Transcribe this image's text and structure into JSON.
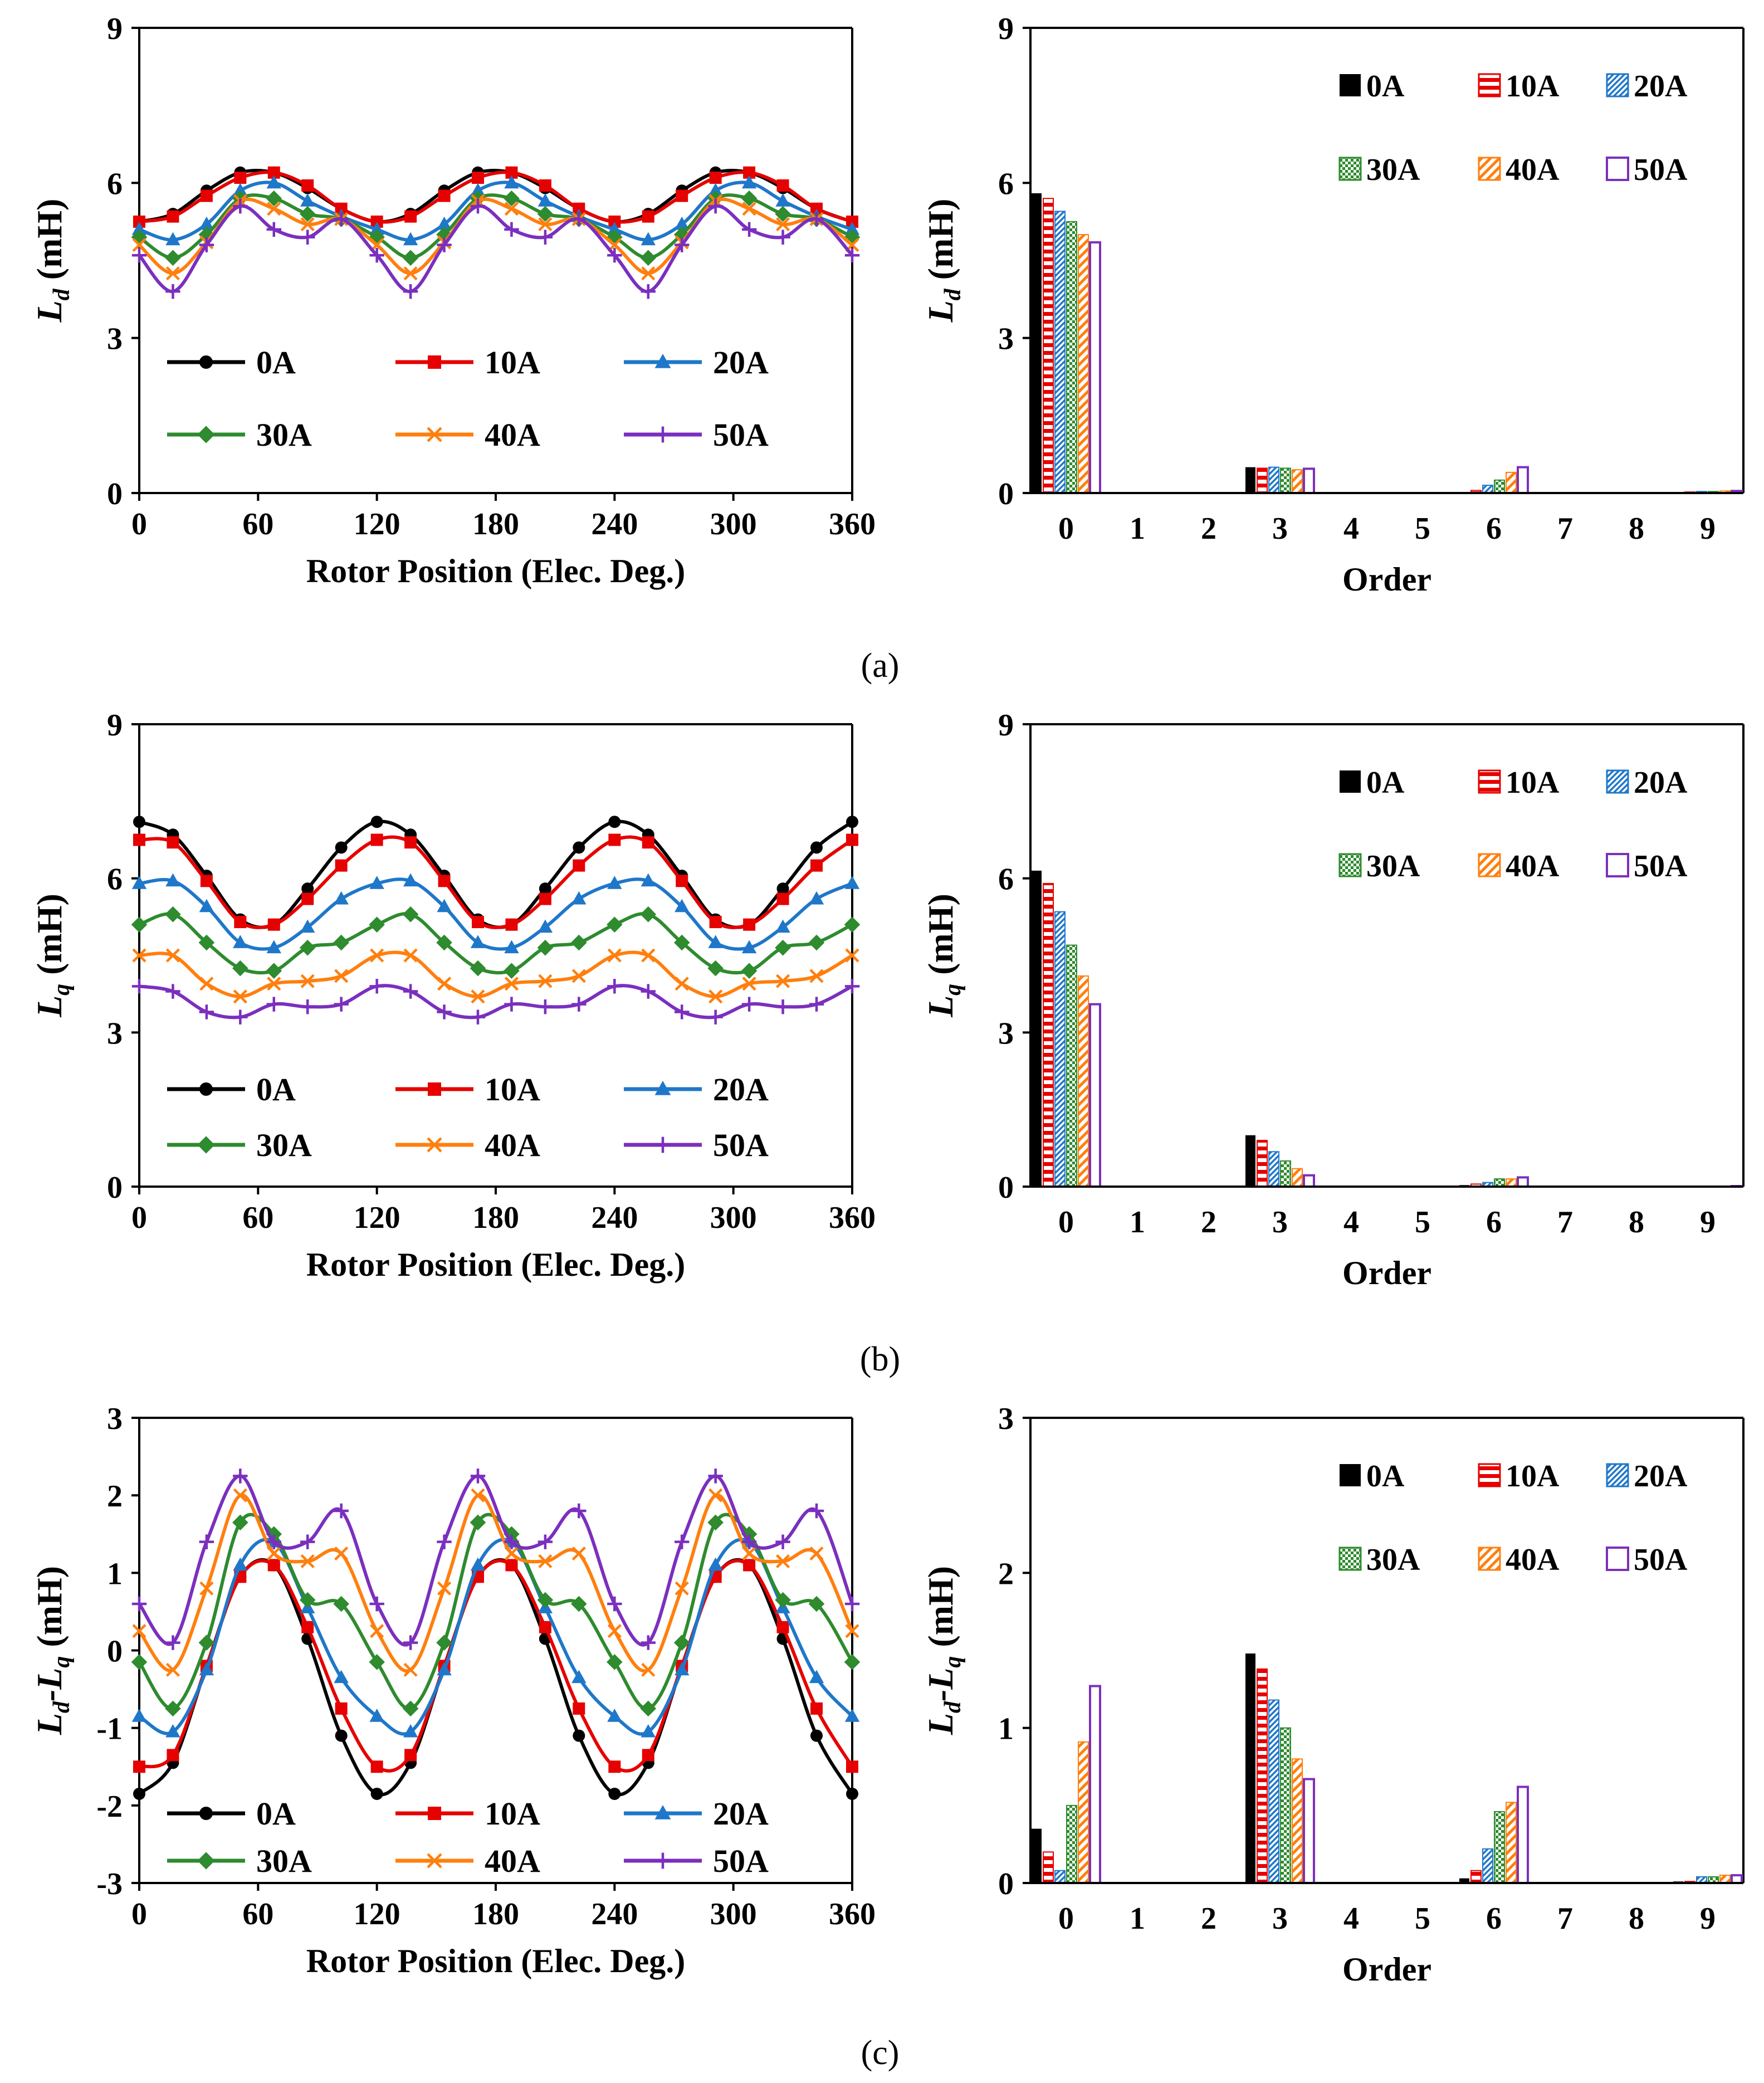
{
  "figure": {
    "panel_labels": [
      "(a)",
      "(b)",
      "(c)"
    ]
  },
  "colors": {
    "0A": "#000000",
    "10A": "#e60000",
    "20A": "#1f77c9",
    "30A": "#2e8b2e",
    "40A": "#ff7f0e",
    "50A": "#7b2fbe"
  },
  "chart_data": [
    {
      "type": "line",
      "panel": "(a)",
      "ylabel_main": "L",
      "ylabel_sub": "d",
      "ylabel_unit": " (mH)",
      "xlabel": "Rotor Position (Elec. Deg.)",
      "xlim": [
        0,
        360
      ],
      "ylim": [
        0,
        9
      ],
      "xticks": [
        0,
        60,
        120,
        180,
        240,
        300,
        360
      ],
      "yticks": [
        0,
        3,
        6,
        9
      ],
      "legend_layout": "three-columns-bottom-left",
      "x": [
        0,
        17,
        34,
        51,
        68,
        85,
        102,
        120,
        137,
        154,
        171,
        188,
        205,
        222,
        240,
        257,
        274,
        291,
        308,
        325,
        342,
        360
      ],
      "series": [
        {
          "name": "0A",
          "marker": "circle",
          "values": [
            5.25,
            5.4,
            5.85,
            6.2,
            6.2,
            5.9,
            5.5,
            5.25,
            5.4,
            5.85,
            6.2,
            6.2,
            5.9,
            5.5,
            5.25,
            5.4,
            5.85,
            6.2,
            6.2,
            5.9,
            5.5,
            5.25
          ]
        },
        {
          "name": "10A",
          "marker": "square",
          "values": [
            5.25,
            5.35,
            5.75,
            6.1,
            6.2,
            5.95,
            5.5,
            5.25,
            5.35,
            5.75,
            6.1,
            6.2,
            5.95,
            5.5,
            5.25,
            5.35,
            5.75,
            6.1,
            6.2,
            5.95,
            5.5,
            5.25
          ]
        },
        {
          "name": "20A",
          "marker": "triangle",
          "values": [
            5.1,
            4.9,
            5.2,
            5.85,
            6.0,
            5.65,
            5.35,
            5.1,
            4.9,
            5.2,
            5.85,
            6.0,
            5.65,
            5.35,
            5.1,
            4.9,
            5.2,
            5.85,
            6.0,
            5.65,
            5.35,
            5.1
          ]
        },
        {
          "name": "30A",
          "marker": "diamond",
          "values": [
            4.95,
            4.55,
            5.0,
            5.7,
            5.7,
            5.4,
            5.3,
            4.95,
            4.55,
            5.0,
            5.7,
            5.7,
            5.4,
            5.3,
            4.95,
            4.55,
            5.0,
            5.7,
            5.7,
            5.4,
            5.3,
            4.95
          ]
        },
        {
          "name": "40A",
          "marker": "x",
          "values": [
            4.8,
            4.25,
            4.85,
            5.65,
            5.5,
            5.2,
            5.3,
            4.8,
            4.25,
            4.85,
            5.65,
            5.5,
            5.2,
            5.3,
            4.8,
            4.25,
            4.85,
            5.65,
            5.5,
            5.2,
            5.3,
            4.8
          ]
        },
        {
          "name": "50A",
          "marker": "plus",
          "values": [
            4.6,
            3.9,
            4.8,
            5.55,
            5.1,
            4.95,
            5.3,
            4.6,
            3.9,
            4.8,
            5.55,
            5.1,
            4.95,
            5.3,
            4.6,
            3.9,
            4.8,
            5.55,
            5.1,
            4.95,
            5.3,
            4.6
          ]
        }
      ]
    },
    {
      "type": "bar",
      "panel": "(a)",
      "ylabel_main": "L",
      "ylabel_sub": "d",
      "ylabel_unit": " (mH)",
      "xlabel": "Order",
      "ylim": [
        0,
        9
      ],
      "yticks": [
        0,
        3,
        6,
        9
      ],
      "categories": [
        "0",
        "1",
        "2",
        "3",
        "4",
        "5",
        "6",
        "7",
        "8",
        "9"
      ],
      "legend_layout": "two-rows-top-right",
      "series": [
        {
          "name": "0A",
          "pattern": "solid",
          "values": [
            5.8,
            0,
            0,
            0.5,
            0,
            0,
            0.02,
            0,
            0,
            0.02
          ]
        },
        {
          "name": "10A",
          "pattern": "hbar",
          "values": [
            5.7,
            0,
            0,
            0.48,
            0,
            0,
            0.05,
            0,
            0,
            0.02
          ]
        },
        {
          "name": "20A",
          "pattern": "diag",
          "values": [
            5.45,
            0,
            0,
            0.5,
            0,
            0,
            0.15,
            0,
            0,
            0.03
          ]
        },
        {
          "name": "30A",
          "pattern": "check",
          "values": [
            5.25,
            0,
            0,
            0.48,
            0,
            0,
            0.25,
            0,
            0,
            0.03
          ]
        },
        {
          "name": "40A",
          "pattern": "wdiag",
          "values": [
            5.0,
            0,
            0,
            0.45,
            0,
            0,
            0.4,
            0,
            0,
            0.04
          ]
        },
        {
          "name": "50A",
          "pattern": "hollow",
          "values": [
            4.85,
            0,
            0,
            0.47,
            0,
            0,
            0.5,
            0,
            0,
            0.04
          ]
        }
      ]
    },
    {
      "type": "line",
      "panel": "(b)",
      "ylabel_main": "L",
      "ylabel_sub": "q",
      "ylabel_unit": " (mH)",
      "xlabel": "Rotor Position (Elec. Deg.)",
      "xlim": [
        0,
        360
      ],
      "ylim": [
        0,
        9
      ],
      "xticks": [
        0,
        60,
        120,
        180,
        240,
        300,
        360
      ],
      "yticks": [
        0,
        3,
        6,
        9
      ],
      "legend_layout": "three-columns-bottom-left",
      "x": [
        0,
        17,
        34,
        51,
        68,
        85,
        102,
        120,
        137,
        154,
        171,
        188,
        205,
        222,
        240,
        257,
        274,
        291,
        308,
        325,
        342,
        360
      ],
      "series": [
        {
          "name": "0A",
          "marker": "circle",
          "values": [
            7.1,
            6.85,
            6.05,
            5.2,
            5.1,
            5.8,
            6.6,
            7.1,
            6.85,
            6.05,
            5.2,
            5.1,
            5.8,
            6.6,
            7.1,
            6.85,
            6.05,
            5.2,
            5.1,
            5.8,
            6.6,
            7.1
          ]
        },
        {
          "name": "10A",
          "marker": "square",
          "values": [
            6.75,
            6.7,
            5.95,
            5.15,
            5.1,
            5.6,
            6.25,
            6.75,
            6.7,
            5.95,
            5.15,
            5.1,
            5.6,
            6.25,
            6.75,
            6.7,
            5.95,
            5.15,
            5.1,
            5.6,
            6.25,
            6.75
          ]
        },
        {
          "name": "20A",
          "marker": "triangle",
          "values": [
            5.9,
            5.95,
            5.45,
            4.75,
            4.65,
            5.05,
            5.6,
            5.9,
            5.95,
            5.45,
            4.75,
            4.65,
            5.05,
            5.6,
            5.9,
            5.95,
            5.45,
            4.75,
            4.65,
            5.05,
            5.6,
            5.9
          ]
        },
        {
          "name": "30A",
          "marker": "diamond",
          "values": [
            5.1,
            5.3,
            4.75,
            4.25,
            4.2,
            4.65,
            4.75,
            5.1,
            5.3,
            4.75,
            4.25,
            4.2,
            4.65,
            4.75,
            5.1,
            5.3,
            4.75,
            4.25,
            4.2,
            4.65,
            4.75,
            5.1
          ]
        },
        {
          "name": "40A",
          "marker": "x",
          "values": [
            4.5,
            4.5,
            3.95,
            3.7,
            3.95,
            4.0,
            4.1,
            4.5,
            4.5,
            3.95,
            3.7,
            3.95,
            4.0,
            4.1,
            4.5,
            4.5,
            3.95,
            3.7,
            3.95,
            4.0,
            4.1,
            4.5
          ]
        },
        {
          "name": "50A",
          "marker": "plus",
          "values": [
            3.9,
            3.8,
            3.4,
            3.3,
            3.55,
            3.5,
            3.55,
            3.9,
            3.8,
            3.4,
            3.3,
            3.55,
            3.5,
            3.55,
            3.9,
            3.8,
            3.4,
            3.3,
            3.55,
            3.5,
            3.55,
            3.9
          ]
        }
      ]
    },
    {
      "type": "bar",
      "panel": "(b)",
      "ylabel_main": "L",
      "ylabel_sub": "q",
      "ylabel_unit": " (mH)",
      "xlabel": "Order",
      "ylim": [
        0,
        9
      ],
      "yticks": [
        0,
        3,
        6,
        9
      ],
      "categories": [
        "0",
        "1",
        "2",
        "3",
        "4",
        "5",
        "6",
        "7",
        "8",
        "9"
      ],
      "legend_layout": "two-rows-top-right",
      "series": [
        {
          "name": "0A",
          "pattern": "solid",
          "values": [
            6.15,
            0,
            0,
            1.0,
            0,
            0,
            0.03,
            0,
            0,
            0.01
          ]
        },
        {
          "name": "10A",
          "pattern": "hbar",
          "values": [
            5.9,
            0,
            0,
            0.9,
            0,
            0,
            0.05,
            0,
            0,
            0.01
          ]
        },
        {
          "name": "20A",
          "pattern": "diag",
          "values": [
            5.35,
            0,
            0,
            0.68,
            0,
            0,
            0.08,
            0,
            0,
            0.01
          ]
        },
        {
          "name": "30A",
          "pattern": "check",
          "values": [
            4.7,
            0,
            0,
            0.5,
            0,
            0,
            0.15,
            0,
            0,
            0.01
          ]
        },
        {
          "name": "40A",
          "pattern": "wdiag",
          "values": [
            4.1,
            0,
            0,
            0.35,
            0,
            0,
            0.15,
            0,
            0,
            0.01
          ]
        },
        {
          "name": "50A",
          "pattern": "hollow",
          "values": [
            3.55,
            0,
            0,
            0.22,
            0,
            0,
            0.18,
            0,
            0,
            0.01
          ]
        }
      ]
    },
    {
      "type": "line",
      "panel": "(c)",
      "ylabel_main": "L",
      "ylabel_sub": "d",
      "ylabel_mid": "-L",
      "ylabel_sub2": "q",
      "ylabel_unit": " (mH)",
      "xlabel": "Rotor Position (Elec. Deg.)",
      "xlim": [
        0,
        360
      ],
      "ylim": [
        -3,
        3
      ],
      "xticks": [
        0,
        60,
        120,
        180,
        240,
        300,
        360
      ],
      "yticks": [
        -3,
        -2,
        -1,
        0,
        1,
        2,
        3
      ],
      "legend_layout": "three-columns-bottom-left",
      "x": [
        0,
        17,
        34,
        51,
        68,
        85,
        102,
        120,
        137,
        154,
        171,
        188,
        205,
        222,
        240,
        257,
        274,
        291,
        308,
        325,
        342,
        360
      ],
      "series": [
        {
          "name": "0A",
          "marker": "circle",
          "values": [
            -1.85,
            -1.45,
            -0.2,
            0.95,
            1.1,
            0.15,
            -1.1,
            -1.85,
            -1.45,
            -0.2,
            0.95,
            1.1,
            0.15,
            -1.1,
            -1.85,
            -1.45,
            -0.2,
            0.95,
            1.1,
            0.15,
            -1.1,
            -1.85
          ]
        },
        {
          "name": "10A",
          "marker": "square",
          "values": [
            -1.5,
            -1.35,
            -0.2,
            0.95,
            1.1,
            0.3,
            -0.75,
            -1.5,
            -1.35,
            -0.2,
            0.95,
            1.1,
            0.3,
            -0.75,
            -1.5,
            -1.35,
            -0.2,
            0.95,
            1.1,
            0.3,
            -0.75,
            -1.5
          ]
        },
        {
          "name": "20A",
          "marker": "triangle",
          "values": [
            -0.85,
            -1.05,
            -0.25,
            1.1,
            1.4,
            0.55,
            -0.35,
            -0.85,
            -1.05,
            -0.25,
            1.1,
            1.4,
            0.55,
            -0.35,
            -0.85,
            -1.05,
            -0.25,
            1.1,
            1.4,
            0.55,
            -0.35,
            -0.85
          ]
        },
        {
          "name": "30A",
          "marker": "diamond",
          "values": [
            -0.15,
            -0.75,
            0.1,
            1.65,
            1.5,
            0.65,
            0.6,
            -0.15,
            -0.75,
            0.1,
            1.65,
            1.5,
            0.65,
            0.6,
            -0.15,
            -0.75,
            0.1,
            1.65,
            1.5,
            0.65,
            0.6,
            -0.15
          ]
        },
        {
          "name": "40A",
          "marker": "x",
          "values": [
            0.25,
            -0.25,
            0.8,
            2.0,
            1.25,
            1.15,
            1.25,
            0.25,
            -0.25,
            0.8,
            2.0,
            1.25,
            1.15,
            1.25,
            0.25,
            -0.25,
            0.8,
            2.0,
            1.25,
            1.15,
            1.25,
            0.25
          ]
        },
        {
          "name": "50A",
          "marker": "plus",
          "values": [
            0.6,
            0.1,
            1.4,
            2.25,
            1.4,
            1.4,
            1.8,
            0.6,
            0.1,
            1.4,
            2.25,
            1.4,
            1.4,
            1.8,
            0.6,
            0.1,
            1.4,
            2.25,
            1.4,
            1.4,
            1.8,
            0.6
          ]
        }
      ]
    },
    {
      "type": "bar",
      "panel": "(c)",
      "ylabel_main": "L",
      "ylabel_sub": "d",
      "ylabel_mid": "-L",
      "ylabel_sub2": "q",
      "ylabel_unit": " (mH)",
      "xlabel": "Order",
      "ylim": [
        0,
        3
      ],
      "yticks": [
        0,
        1,
        2,
        3
      ],
      "categories": [
        "0",
        "1",
        "2",
        "3",
        "4",
        "5",
        "6",
        "7",
        "8",
        "9"
      ],
      "legend_layout": "two-rows-top-right",
      "series": [
        {
          "name": "0A",
          "pattern": "solid",
          "values": [
            0.35,
            0,
            0,
            1.48,
            0,
            0,
            0.03,
            0,
            0,
            0.01
          ]
        },
        {
          "name": "10A",
          "pattern": "hbar",
          "values": [
            0.2,
            0,
            0,
            1.38,
            0,
            0,
            0.08,
            0,
            0,
            0.01
          ]
        },
        {
          "name": "20A",
          "pattern": "diag",
          "values": [
            0.08,
            0,
            0,
            1.18,
            0,
            0,
            0.22,
            0,
            0,
            0.04
          ]
        },
        {
          "name": "30A",
          "pattern": "check",
          "values": [
            0.5,
            0,
            0,
            1.0,
            0,
            0,
            0.46,
            0,
            0,
            0.04
          ]
        },
        {
          "name": "40A",
          "pattern": "wdiag",
          "values": [
            0.91,
            0,
            0,
            0.8,
            0,
            0,
            0.52,
            0,
            0,
            0.05
          ]
        },
        {
          "name": "50A",
          "pattern": "hollow",
          "values": [
            1.27,
            0,
            0,
            0.67,
            0,
            0,
            0.62,
            0,
            0,
            0.05
          ]
        }
      ]
    }
  ]
}
